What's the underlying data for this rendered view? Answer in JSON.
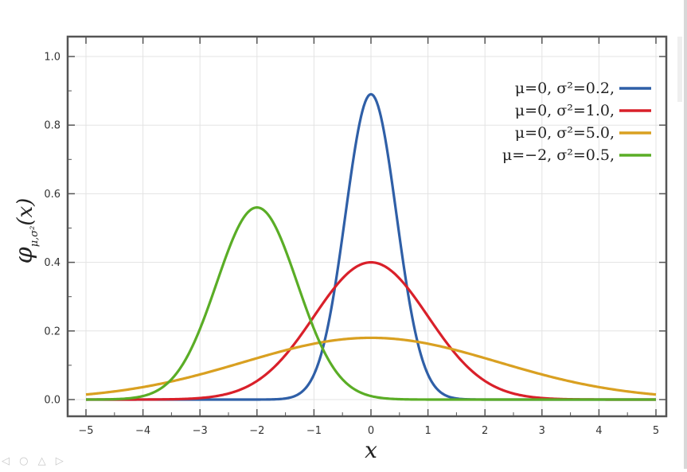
{
  "chart_data": {
    "type": "line",
    "xlabel": "x",
    "ylabel_main": "φ",
    "ylabel_sub": "μ,σ²",
    "ylabel_arg": "(x)",
    "xlim": [
      -5,
      5
    ],
    "ylim": [
      0.0,
      1.0
    ],
    "x_ticks": [
      -5,
      -4,
      -3,
      -2,
      -1,
      0,
      1,
      2,
      3,
      4,
      5
    ],
    "x_tick_labels": [
      "−5",
      "−4",
      "−3",
      "−2",
      "−1",
      "0",
      "1",
      "2",
      "3",
      "4",
      "5"
    ],
    "y_ticks": [
      0.0,
      0.2,
      0.4,
      0.6,
      0.8,
      1.0
    ],
    "y_tick_labels": [
      "0.0",
      "0.2",
      "0.4",
      "0.6",
      "0.8",
      "1.0"
    ],
    "grid": true,
    "legend_position": "top-right",
    "series": [
      {
        "legend": "μ=0,   σ²=0.2,",
        "mu": 0,
        "variance": 0.2,
        "color": "#2f5fa7",
        "peak": 0.89
      },
      {
        "legend": "μ=0,   σ²=1.0,",
        "mu": 0,
        "variance": 1.0,
        "color": "#d9202a",
        "peak": 0.4
      },
      {
        "legend": "μ=0,   σ²=5.0,",
        "mu": 0,
        "variance": 5.0,
        "color": "#d9a021",
        "peak": 0.18
      },
      {
        "legend": "μ=−2, σ²=0.5,",
        "mu": -2,
        "variance": 0.5,
        "color": "#5aad26",
        "peak": 0.56
      }
    ]
  }
}
